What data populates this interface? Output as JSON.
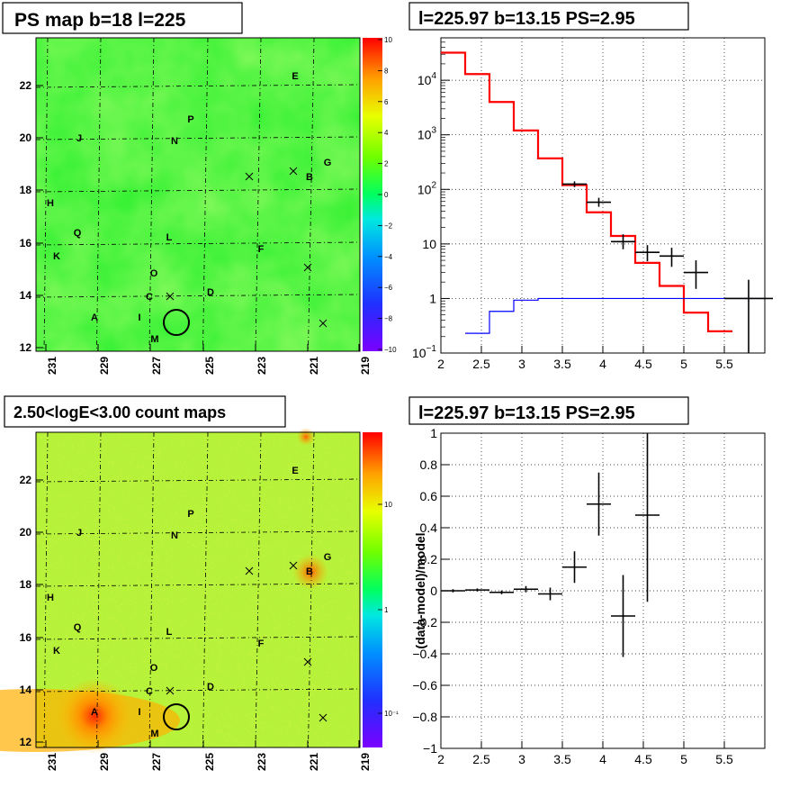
{
  "chart_data": [
    {
      "type": "heatmap",
      "title": "PS map b=18 l=225",
      "x_ticks": [
        "231",
        "229",
        "227",
        "225",
        "223",
        "221",
        "219"
      ],
      "y_ticks": [
        "22",
        "20",
        "18",
        "16",
        "14",
        "12"
      ],
      "colorbar_ticks": [
        "10",
        "8",
        "6",
        "4",
        "2",
        "0",
        "−2",
        "−4",
        "−6",
        "−8",
        "−10"
      ],
      "sources": [
        "A",
        "B",
        "C",
        "D",
        "E",
        "F",
        "G",
        "H",
        "I",
        "J",
        "K",
        "L",
        "M",
        "N",
        "O",
        "P",
        "Q"
      ]
    },
    {
      "type": "line",
      "title": "l=225.97 b=13.15 PS=2.95",
      "y_scale": "log",
      "xlim": [
        2,
        6
      ],
      "ylim": [
        0.1,
        60000
      ],
      "x_ticks": [
        "2",
        "2.5",
        "3",
        "3.5",
        "4",
        "4.5",
        "5",
        "5.5"
      ],
      "y_ticks": [
        {
          "v": 0.1,
          "b": "10",
          "e": "−1"
        },
        {
          "v": 1,
          "b": "1",
          "e": ""
        },
        {
          "v": 10,
          "b": "10",
          "e": ""
        },
        {
          "v": 100,
          "b": "10",
          "e": "2"
        },
        {
          "v": 1000,
          "b": "10",
          "e": "3"
        },
        {
          "v": 10000,
          "b": "10",
          "e": "4"
        }
      ],
      "series": [
        {
          "color": "#ff0000",
          "edges": [
            2.0,
            2.3,
            2.6,
            2.9,
            3.2,
            3.5,
            3.8,
            4.1,
            4.4,
            4.7,
            5.0,
            5.3,
            5.6
          ],
          "values": [
            32000,
            13000,
            4000,
            1200,
            370,
            120,
            38,
            14,
            4.5,
            1.7,
            0.55,
            0.25
          ]
        },
        {
          "color": "#0000ff",
          "edges": [
            2.3,
            2.6,
            2.9,
            3.2,
            3.5,
            3.8,
            4.1,
            4.4,
            4.7,
            5.0,
            5.3,
            5.6,
            6.0
          ],
          "values": [
            0.23,
            0.58,
            0.93,
            1.0,
            1.0,
            1.0,
            1.0,
            1.0,
            1.0,
            1.0,
            1.0,
            1.0
          ]
        }
      ],
      "points": [
        {
          "x": 3.65,
          "xerr": 0.15,
          "y": 125,
          "ylo": 110,
          "yhi": 140
        },
        {
          "x": 3.95,
          "xerr": 0.15,
          "y": 58,
          "ylo": 48,
          "yhi": 70
        },
        {
          "x": 4.25,
          "xerr": 0.15,
          "y": 11,
          "ylo": 8,
          "yhi": 15
        },
        {
          "x": 4.55,
          "xerr": 0.15,
          "y": 7,
          "ylo": 4.8,
          "yhi": 9.5
        },
        {
          "x": 4.85,
          "xerr": 0.15,
          "y": 6,
          "ylo": 3.8,
          "yhi": 8.5
        },
        {
          "x": 5.15,
          "xerr": 0.15,
          "y": 3,
          "ylo": 1.5,
          "yhi": 5.0
        },
        {
          "x": 5.8,
          "xerr": 0.3,
          "y": 1,
          "ylo": 0.1,
          "yhi": 2.2
        }
      ]
    },
    {
      "type": "heatmap",
      "title": "2.50<logE<3.00 count maps",
      "x_ticks": [
        "231",
        "229",
        "227",
        "225",
        "223",
        "221",
        "219"
      ],
      "y_ticks": [
        "22",
        "20",
        "18",
        "16",
        "14",
        "12"
      ],
      "colorbar_ticks": [
        "10",
        "1",
        "10⁻¹"
      ],
      "sources": [
        "A",
        "B",
        "C",
        "D",
        "E",
        "F",
        "G",
        "H",
        "I",
        "J",
        "K",
        "L",
        "M",
        "N",
        "O",
        "P",
        "Q"
      ]
    },
    {
      "type": "scatter",
      "title": "l=225.97 b=13.15 PS=2.95",
      "ylabel": "(data-model)/model",
      "xlim": [
        2,
        6
      ],
      "ylim": [
        -1,
        1
      ],
      "x_ticks": [
        "2",
        "2.5",
        "3",
        "3.5",
        "4",
        "4.5",
        "5",
        "5.5"
      ],
      "y_ticks": [
        "1",
        "0.8",
        "0.6",
        "0.4",
        "0.2",
        "0",
        "−0.2",
        "−0.4",
        "−0.6",
        "−0.8",
        "−1"
      ],
      "points": [
        {
          "x": 2.15,
          "xerr": 0.15,
          "y": 0.0,
          "yerr": 0.01
        },
        {
          "x": 2.45,
          "xerr": 0.15,
          "y": 0.005,
          "yerr": 0.01
        },
        {
          "x": 2.75,
          "xerr": 0.15,
          "y": -0.01,
          "yerr": 0.012
        },
        {
          "x": 3.05,
          "xerr": 0.15,
          "y": 0.01,
          "yerr": 0.02
        },
        {
          "x": 3.35,
          "xerr": 0.15,
          "y": -0.02,
          "yerr": 0.04
        },
        {
          "x": 3.65,
          "xerr": 0.15,
          "y": 0.15,
          "yerr": 0.1
        },
        {
          "x": 3.95,
          "xerr": 0.15,
          "y": 0.55,
          "yerr": 0.2
        },
        {
          "x": 4.25,
          "xerr": 0.15,
          "y": -0.16,
          "yerr": 0.26
        },
        {
          "x": 4.55,
          "xerr": 0.15,
          "y": 0.48,
          "yerr": 0.55
        }
      ]
    }
  ]
}
